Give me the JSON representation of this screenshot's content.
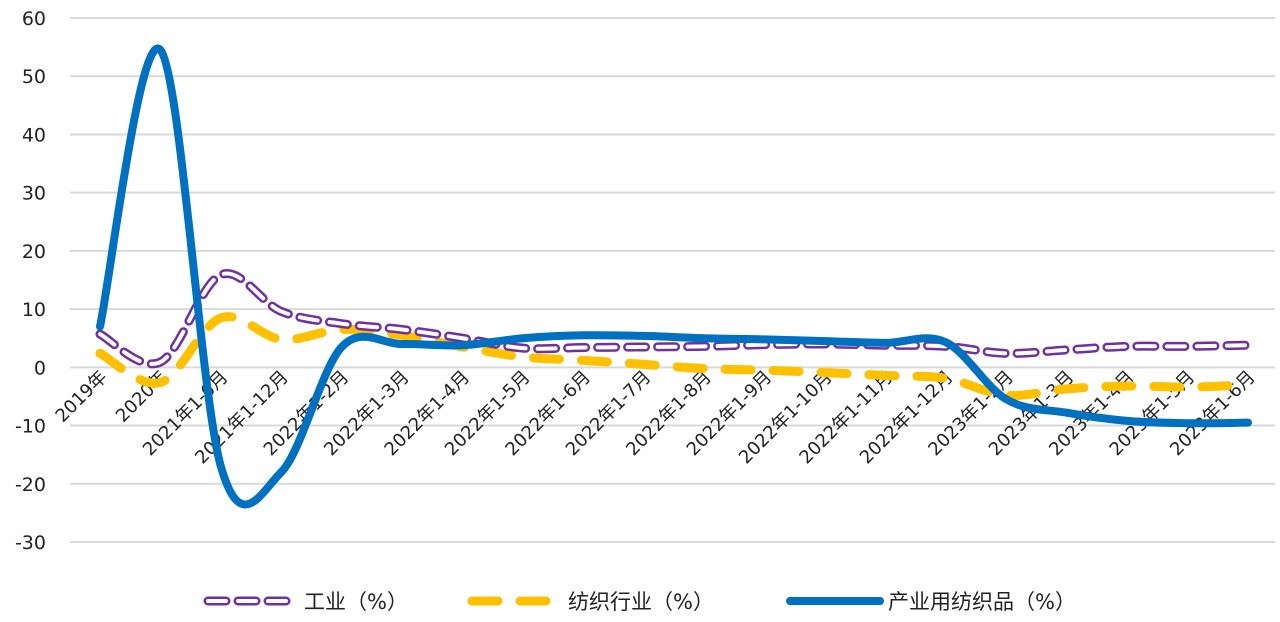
{
  "chart_data": {
    "type": "line",
    "title": "",
    "xlabel": "",
    "ylabel": "",
    "ylim": [
      -30,
      60
    ],
    "yticks": [
      "60",
      "50",
      "40",
      "30",
      "20",
      "10",
      "0",
      "-10",
      "-20",
      "-30"
    ],
    "grid": true,
    "smooth": true,
    "legend_position": "bottom",
    "categories": [
      "2019年",
      "2020年",
      "2021年1-6月",
      "2021年1-12月",
      "2022年1-2月",
      "2022年1-3月",
      "2022年1-4月",
      "2022年1-5月",
      "2022年1-6月",
      "2022年1-7月",
      "2022年1-8月",
      "2022年1-9月",
      "2022年1-10月",
      "2022年1-11月",
      "2022年1-12月",
      "2023年1-2月",
      "2023年1-3月",
      "2023年1-4月",
      "2023年1-5月",
      "2023年1-6月"
    ],
    "series": [
      {
        "name": "工业（%）",
        "color": "#7030a0",
        "style": "dashed-outline",
        "values": [
          5.7,
          0.9,
          15.9,
          9.6,
          7.5,
          6.5,
          5.0,
          3.3,
          3.4,
          3.5,
          3.6,
          3.9,
          4.0,
          3.8,
          3.6,
          2.4,
          3.0,
          3.6,
          3.6,
          3.8
        ]
      },
      {
        "name": "纺织行业（%）",
        "color": "#ffc000",
        "style": "dashed",
        "values": [
          2.4,
          -2.6,
          8.5,
          4.8,
          6.5,
          5.5,
          3.5,
          1.8,
          1.2,
          0.5,
          -0.2,
          -0.5,
          -0.9,
          -1.4,
          -1.9,
          -4.8,
          -3.7,
          -3.2,
          -3.4,
          -3.0
        ]
      },
      {
        "name": "产业用纺织品（%）",
        "color": "#0070c0",
        "style": "solid",
        "values": [
          7.0,
          54.5,
          -17.0,
          -18.0,
          3.5,
          4.0,
          3.8,
          5.0,
          5.5,
          5.4,
          5.0,
          4.8,
          4.5,
          4.2,
          4.3,
          -5.5,
          -7.8,
          -9.2,
          -9.6,
          -9.5
        ]
      }
    ]
  }
}
